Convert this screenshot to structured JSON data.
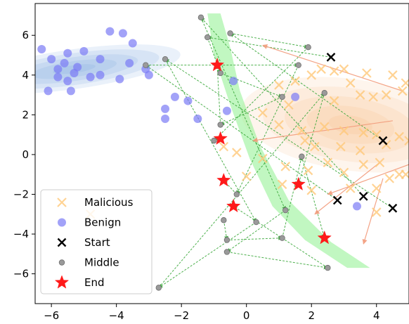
{
  "chart_data": {
    "type": "scatter",
    "title": "",
    "xlabel": "",
    "ylabel": "",
    "xlim": [
      -6.5,
      5.0
    ],
    "ylim": [
      -7.5,
      7.6
    ],
    "x_ticks": [
      -6,
      -4,
      -2,
      0,
      2,
      4
    ],
    "y_ticks": [
      -6,
      -4,
      -2,
      0,
      2,
      4,
      6
    ],
    "x_tick_labels": [
      "−6",
      "−4",
      "−2",
      "0",
      "2",
      "4"
    ],
    "y_tick_labels": [
      "−6",
      "−4",
      "−2",
      "0",
      "2",
      "4",
      "6"
    ],
    "grid": false,
    "legend": {
      "position": "lower-left",
      "entries": [
        "Malicious",
        "Benign",
        "Start",
        "Middle",
        "End"
      ]
    },
    "colors": {
      "malicious": "#ffc97a",
      "benign": "#7b7bf5",
      "start": "#000000",
      "middle": "#9a9a9a",
      "end": "#ff1a1a",
      "path": "#3aa83a",
      "arrow": "#f29a7a",
      "benign_density": "#5a8fd6",
      "malicious_density": "#f7a35c",
      "boundary": "#8ef08e"
    },
    "series": [
      {
        "name": "Malicious",
        "marker": "x",
        "points": [
          [
            1.0,
            3.5
          ],
          [
            1.5,
            3.7
          ],
          [
            2.0,
            4.0
          ],
          [
            2.3,
            4.3
          ],
          [
            2.7,
            4.2
          ],
          [
            3.0,
            4.3
          ],
          [
            3.7,
            4.1
          ],
          [
            4.5,
            4.0
          ],
          [
            4.9,
            3.6
          ],
          [
            3.2,
            3.6
          ],
          [
            3.5,
            3.0
          ],
          [
            3.9,
            2.9
          ],
          [
            4.3,
            3.0
          ],
          [
            4.8,
            3.2
          ],
          [
            2.7,
            2.7
          ],
          [
            1.3,
            2.5
          ],
          [
            0.5,
            2.1
          ],
          [
            1.0,
            1.5
          ],
          [
            1.7,
            1.2
          ],
          [
            2.4,
            1.4
          ],
          [
            3.0,
            1.2
          ],
          [
            3.6,
            1.1
          ],
          [
            4.0,
            1.0
          ],
          [
            4.7,
            0.9
          ],
          [
            1.8,
            0.7
          ],
          [
            2.1,
            0.4
          ],
          [
            2.9,
            0.4
          ],
          [
            3.5,
            0.2
          ],
          [
            4.3,
            0.5
          ],
          [
            5.0,
            0.7
          ],
          [
            -0.7,
            0.4
          ],
          [
            -0.3,
            0.1
          ],
          [
            0.5,
            -0.2
          ],
          [
            1.2,
            -0.6
          ],
          [
            1.9,
            -0.8
          ],
          [
            2.5,
            -0.4
          ],
          [
            3.0,
            -0.9
          ],
          [
            3.6,
            -0.5
          ],
          [
            4.1,
            -0.4
          ],
          [
            4.7,
            -1.0
          ],
          [
            0.0,
            -1.1
          ],
          [
            1.1,
            -1.5
          ],
          [
            2.0,
            -1.8
          ],
          [
            3.2,
            -1.7
          ],
          [
            4.0,
            -1.7
          ],
          [
            4.4,
            -1.2
          ],
          [
            4.9,
            -1.0
          ],
          [
            -4.8,
            -3.0
          ],
          [
            4.0,
            -2.9
          ]
        ]
      },
      {
        "name": "Benign",
        "marker": "o",
        "points": [
          [
            -6.3,
            5.3
          ],
          [
            -6.0,
            4.8
          ],
          [
            -5.8,
            4.3
          ],
          [
            -5.6,
            4.6
          ],
          [
            -5.5,
            5.1
          ],
          [
            -5.0,
            5.2
          ],
          [
            -4.5,
            4.8
          ],
          [
            -5.2,
            4.4
          ],
          [
            -5.8,
            3.9
          ],
          [
            -6.1,
            3.2
          ],
          [
            -5.3,
            4.1
          ],
          [
            -5.5,
            3.7
          ],
          [
            -5.4,
            3.2
          ],
          [
            -4.8,
            3.9
          ],
          [
            -4.5,
            4.0
          ],
          [
            -3.9,
            3.8
          ],
          [
            -4.2,
            6.2
          ],
          [
            -3.8,
            6.1
          ],
          [
            -3.5,
            5.6
          ],
          [
            -3.6,
            4.6
          ],
          [
            -3.1,
            4.3
          ],
          [
            -3.0,
            4.0
          ],
          [
            -2.5,
            2.3
          ],
          [
            -2.2,
            2.9
          ],
          [
            -1.8,
            2.7
          ],
          [
            -2.5,
            1.8
          ],
          [
            -1.5,
            1.8
          ],
          [
            -0.6,
            2.2
          ],
          [
            -0.4,
            3.7
          ],
          [
            1.5,
            2.9
          ],
          [
            3.4,
            -2.6
          ]
        ]
      },
      {
        "name": "Start",
        "marker": "x",
        "points": [
          [
            2.6,
            4.9
          ],
          [
            4.2,
            0.7
          ],
          [
            2.8,
            -2.3
          ],
          [
            3.6,
            -2.1
          ],
          [
            4.5,
            -2.7
          ]
        ]
      },
      {
        "name": "Middle",
        "marker": "o",
        "points": [
          [
            -1.4,
            6.9
          ],
          [
            -1.2,
            5.9
          ],
          [
            -0.5,
            6.1
          ],
          [
            -2.5,
            4.8
          ],
          [
            -3.1,
            4.5
          ],
          [
            1.6,
            4.5
          ],
          [
            1.9,
            5.4
          ],
          [
            -0.8,
            4.1
          ],
          [
            1.1,
            2.9
          ],
          [
            2.4,
            3.1
          ],
          [
            -0.8,
            1.5
          ],
          [
            1.7,
            -0.1
          ],
          [
            -1.0,
            0.7
          ],
          [
            -0.3,
            -2.0
          ],
          [
            1.2,
            -2.8
          ],
          [
            0.3,
            -3.4
          ],
          [
            -0.7,
            -3.3
          ],
          [
            -0.6,
            -4.3
          ],
          [
            1.1,
            -4.2
          ],
          [
            -0.6,
            -4.9
          ],
          [
            2.5,
            -5.7
          ],
          [
            -2.7,
            -6.7
          ]
        ]
      },
      {
        "name": "End",
        "marker": "star",
        "points": [
          [
            -0.9,
            4.5
          ],
          [
            -0.8,
            0.8
          ],
          [
            -0.7,
            -1.3
          ],
          [
            -0.4,
            -2.6
          ],
          [
            1.6,
            -1.5
          ],
          [
            2.4,
            -4.2
          ]
        ]
      }
    ],
    "adversarial_paths": [
      [
        [
          2.6,
          4.9
        ],
        [
          -1.2,
          5.9
        ],
        [
          -0.8,
          4.1
        ],
        [
          1.1,
          2.9
        ],
        [
          -0.8,
          1.5
        ],
        [
          -0.9,
          4.5
        ]
      ],
      [
        [
          4.2,
          0.7
        ],
        [
          -0.5,
          6.1
        ],
        [
          1.9,
          5.4
        ],
        [
          -1.0,
          0.7
        ],
        [
          -0.8,
          0.8
        ]
      ],
      [
        [
          2.8,
          -2.3
        ],
        [
          -3.1,
          4.5
        ],
        [
          1.6,
          4.5
        ],
        [
          -0.3,
          -2.0
        ],
        [
          -0.7,
          -1.3
        ]
      ],
      [
        [
          3.6,
          -2.1
        ],
        [
          -1.4,
          6.9
        ],
        [
          1.2,
          -2.8
        ],
        [
          -0.6,
          -4.9
        ],
        [
          2.5,
          -5.7
        ],
        [
          -0.4,
          -2.6
        ]
      ],
      [
        [
          4.5,
          -2.7
        ],
        [
          -2.5,
          4.8
        ],
        [
          0.3,
          -3.4
        ],
        [
          -2.7,
          -6.7
        ],
        [
          2.4,
          3.1
        ],
        [
          1.6,
          -1.5
        ]
      ],
      [
        [
          -0.7,
          -3.3
        ],
        [
          -0.6,
          -4.3
        ],
        [
          1.1,
          -4.2
        ],
        [
          1.7,
          -0.1
        ],
        [
          2.4,
          -4.2
        ]
      ]
    ],
    "gradient_arrows": [
      [
        [
          4.8,
          3.2
        ],
        [
          0.5,
          5.5
        ]
      ],
      [
        [
          4.5,
          1.7
        ],
        [
          0.2,
          0.7
        ]
      ],
      [
        [
          4.2,
          -1.2
        ],
        [
          3.6,
          -4.5
        ]
      ],
      [
        [
          4.1,
          -0.4
        ],
        [
          2.1,
          -3.0
        ]
      ],
      [
        [
          5.0,
          -0.5
        ],
        [
          2.5,
          -2.0
        ]
      ]
    ],
    "density_regions": {
      "benign": {
        "center": [
          -5.3,
          4.3
        ],
        "spread": [
          3.3,
          1.0
        ],
        "levels": 5
      },
      "malicious": {
        "center": [
          3.2,
          1.5
        ],
        "spread": [
          3.4,
          2.3
        ],
        "levels": 5
      }
    },
    "decision_band": [
      [
        -1.2,
        7.1
      ],
      [
        -1.0,
        5.0
      ],
      [
        -0.5,
        2.5
      ],
      [
        0.1,
        -0.2
      ],
      [
        0.8,
        -2.6
      ],
      [
        1.8,
        -4.3
      ],
      [
        3.1,
        -5.7
      ],
      [
        3.8,
        -5.7
      ],
      [
        2.6,
        -4.4
      ],
      [
        1.3,
        -2.3
      ],
      [
        0.4,
        0.5
      ],
      [
        -0.2,
        3.2
      ],
      [
        -0.5,
        5.4
      ],
      [
        -0.8,
        7.1
      ]
    ]
  }
}
